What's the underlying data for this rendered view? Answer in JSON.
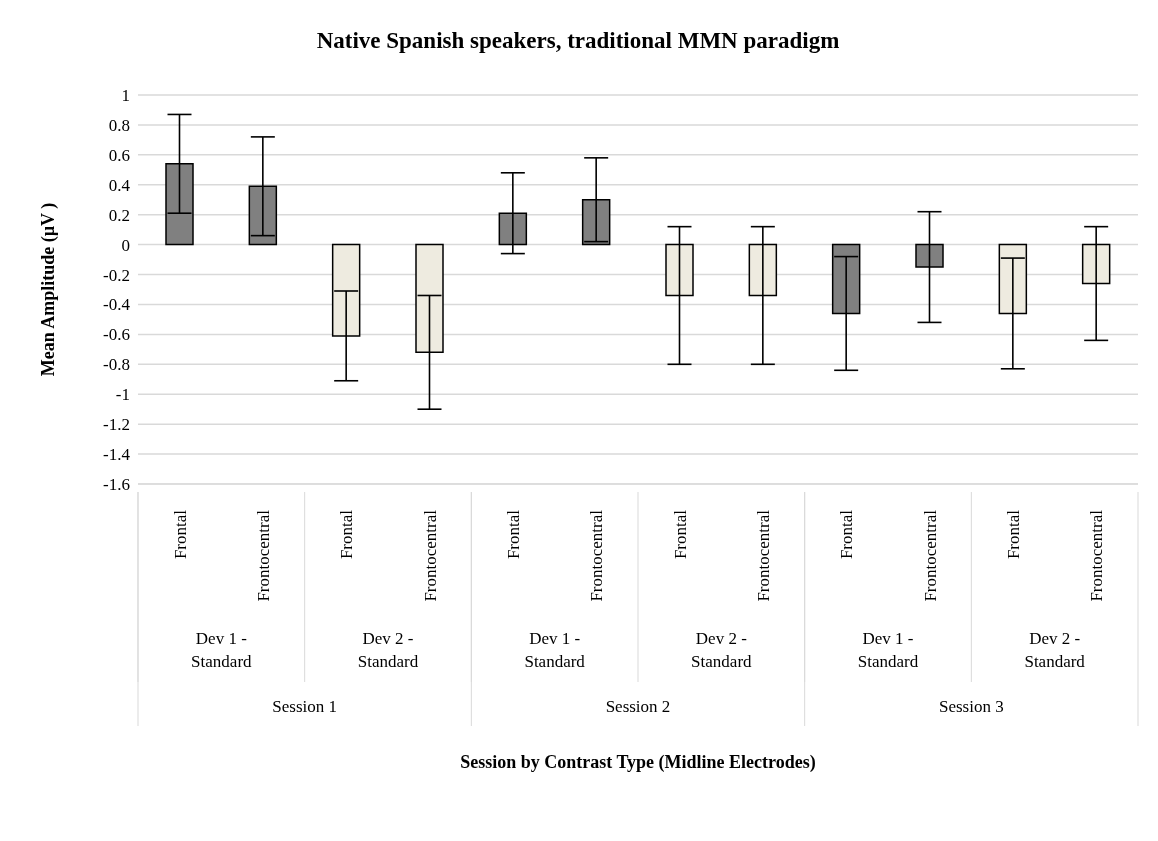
{
  "chart_data": {
    "type": "bar",
    "title": "Native Spanish speakers, traditional MMN paradigm",
    "ylabel": "Mean Amplitude (µV )",
    "categories": [
      "Frontal",
      "Frontocentral",
      "Frontal",
      "Frontocentral",
      "Frontal",
      "Frontocentral",
      "Frontal",
      "Frontocentral",
      "Frontal",
      "Frontocentral",
      "Frontal",
      "Frontocentral"
    ],
    "values": [
      0.54,
      0.39,
      -0.61,
      -0.72,
      0.21,
      0.3,
      -0.34,
      -0.34,
      -0.46,
      -0.15,
      -0.46,
      -0.26
    ],
    "errors": [
      0.33,
      0.33,
      0.3,
      0.38,
      0.27,
      0.28,
      0.46,
      0.46,
      0.38,
      0.37,
      0.37,
      0.38
    ],
    "colors": [
      "#808080",
      "#808080",
      "#eeebe0",
      "#eeebe0",
      "#808080",
      "#808080",
      "#eeebe0",
      "#eeebe0",
      "#808080",
      "#808080",
      "#eeebe0",
      "#eeebe0"
    ],
    "ylim": [
      -1.6,
      1
    ],
    "yticks": [
      1,
      0.8,
      0.6,
      0.4,
      0.2,
      0,
      -0.2,
      -0.4,
      -0.6,
      -0.8,
      -1,
      -1.2,
      -1.4,
      -1.6
    ],
    "grid": "y",
    "annotations": [
      "Dev 1 - Standard",
      "Dev 2 - Standard",
      "Dev 1 - Standard",
      "Dev 2 - Standard",
      "Dev 1 - Standard",
      "Dev 2 - Standard",
      "Session 1",
      "Session 2",
      "Session 3",
      "Session by Contrast Type (Midline Electrodes)"
    ]
  }
}
